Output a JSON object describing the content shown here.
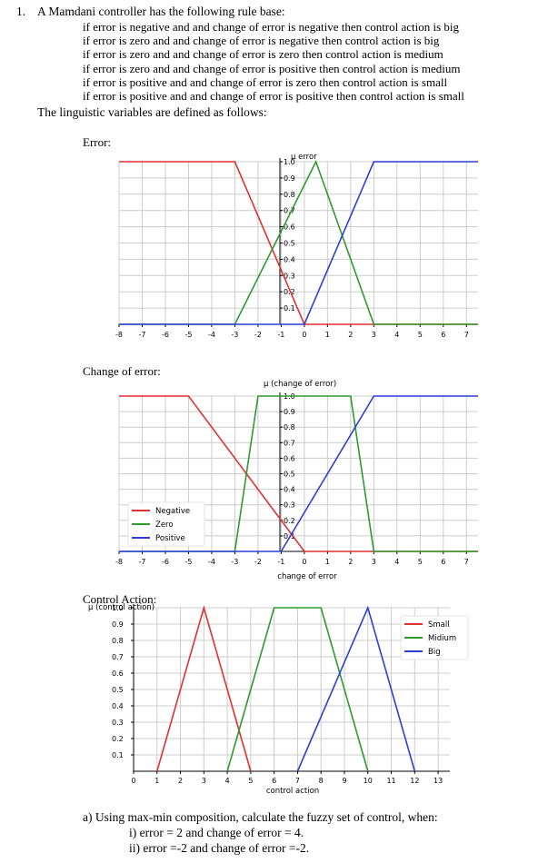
{
  "question": {
    "number": "1.",
    "intro": "A Mamdani controller has the following rule base:",
    "rules": [
      "if error is negative and and change of error is negative then control action is big",
      "if error is zero and and change of error is negative then control action is big",
      "if error is zero and and change of error is zero then control action is medium",
      "if error is zero and and change of error is positive then control action is medium",
      "if error is positive and and change of error is zero then control action is small",
      "if error is positive and and change of error is positive then control action is small"
    ],
    "linguistic": "The linguistic variables are defined as follows:",
    "sections": {
      "error": "Error:",
      "change": "Change of error:",
      "control": "Control Action:"
    },
    "part_a": "a) Using max-min composition, calculate the fuzzy set of control, when:",
    "part_i": "i) error = 2 and change of error = 4.",
    "part_ii": "ii) error =-2   and change of error =-2."
  },
  "colors": {
    "red": "#e03030",
    "green": "#2e9a2e",
    "blue": "#2b3fd6",
    "grid": "#cccccc"
  },
  "chart_data": [
    {
      "type": "line",
      "title": "",
      "ylabel": "μ error",
      "xlabel": "",
      "xlim": [
        -8,
        7.5
      ],
      "ylim": [
        0,
        1
      ],
      "x_ticks": [
        "-8",
        "-7",
        "-6",
        "-5",
        "-4",
        "-3",
        "-2",
        "-1",
        "0",
        "1",
        "2",
        "3",
        "4",
        "5",
        "6",
        "7"
      ],
      "y_ticks": [
        "0.1",
        "0.2",
        "0.3",
        "0.4",
        "0.5",
        "0.6",
        "0.7",
        "0.8",
        "0.9",
        "1.0"
      ],
      "grid": true,
      "series": [
        {
          "color": "red",
          "x": [
            -8,
            -3,
            0,
            7.5
          ],
          "y": [
            1,
            1,
            0,
            0
          ]
        },
        {
          "color": "green",
          "x": [
            -8,
            -3,
            0.5,
            3,
            7.5
          ],
          "y": [
            0,
            0,
            1,
            0,
            0
          ]
        },
        {
          "color": "blue",
          "x": [
            -8,
            0,
            3,
            7.5
          ],
          "y": [
            0,
            0,
            1,
            1
          ]
        }
      ]
    },
    {
      "type": "line",
      "title": "",
      "ylabel": "μ (change of error)",
      "xlabel": "change of error",
      "xlim": [
        -8,
        7.5
      ],
      "ylim": [
        0,
        1
      ],
      "x_ticks": [
        "-8",
        "-7",
        "-6",
        "-5",
        "-4",
        "-3",
        "-2",
        "-1",
        "0",
        "1",
        "2",
        "3",
        "4",
        "5",
        "6",
        "7"
      ],
      "y_ticks": [
        "0.1",
        "0.2",
        "0.3",
        "0.4",
        "0.5",
        "0.6",
        "0.7",
        "0.8",
        "0.9",
        "1.0"
      ],
      "grid": true,
      "legend": [
        "Negative",
        "Zero",
        "Positive"
      ],
      "legend_position": "lower-left",
      "series": [
        {
          "name": "Negative",
          "color": "red",
          "x": [
            -8,
            -5,
            0,
            7.5
          ],
          "y": [
            1,
            1,
            0,
            0
          ]
        },
        {
          "name": "Zero",
          "color": "green",
          "x": [
            -8,
            -3,
            -2,
            2,
            3,
            7.5
          ],
          "y": [
            0,
            0,
            1,
            1,
            0,
            0
          ]
        },
        {
          "name": "Positive",
          "color": "blue",
          "x": [
            -8,
            -1,
            3,
            7.5
          ],
          "y": [
            0,
            0,
            1,
            1
          ]
        }
      ]
    },
    {
      "type": "line",
      "title": "",
      "ylabel": "μ (control action)",
      "xlabel": "control action",
      "xlim": [
        0,
        13.5
      ],
      "ylim": [
        0,
        1
      ],
      "x_ticks": [
        "0",
        "1",
        "2",
        "3",
        "4",
        "5",
        "6",
        "7",
        "8",
        "9",
        "10",
        "11",
        "12",
        "13"
      ],
      "y_ticks": [
        "0.1",
        "0.2",
        "0.3",
        "0.4",
        "0.5",
        "0.6",
        "0.7",
        "0.8",
        "0.9",
        "1.0"
      ],
      "grid": true,
      "legend": [
        "Small",
        "Midium",
        "Big"
      ],
      "legend_position": "top-right",
      "series": [
        {
          "name": "Small",
          "color": "red",
          "x": [
            1,
            3,
            5
          ],
          "y": [
            0,
            1,
            0
          ]
        },
        {
          "name": "Midium",
          "color": "green",
          "x": [
            4,
            6,
            8,
            10
          ],
          "y": [
            0,
            1,
            1,
            0
          ]
        },
        {
          "name": "Big",
          "color": "blue",
          "x": [
            7,
            10,
            12
          ],
          "y": [
            0,
            1,
            0
          ]
        }
      ]
    }
  ]
}
